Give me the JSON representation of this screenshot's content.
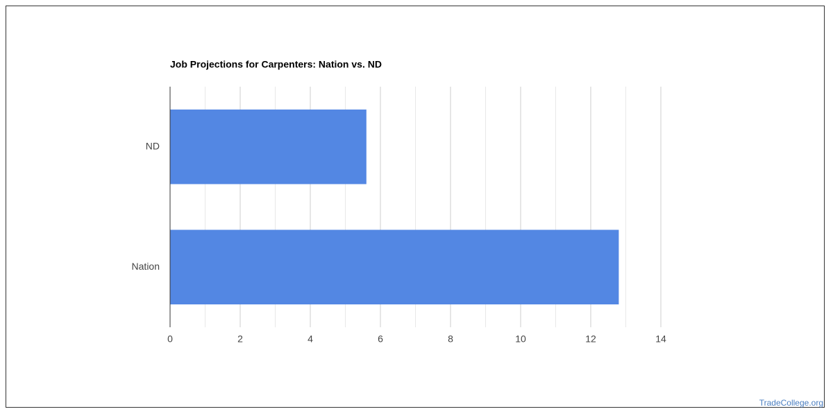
{
  "chart_data": {
    "type": "hbar",
    "title": "Job Projections for Carpenters: Nation vs. ND",
    "categories": [
      "ND",
      "Nation"
    ],
    "values": [
      5.6,
      12.8
    ],
    "color": "#5387e3",
    "xlim": [
      0,
      14
    ],
    "xticks": [
      0,
      2,
      4,
      6,
      8,
      10,
      12,
      14
    ],
    "grid": true
  },
  "footer": {
    "watermark": "TradeCollege.org"
  }
}
